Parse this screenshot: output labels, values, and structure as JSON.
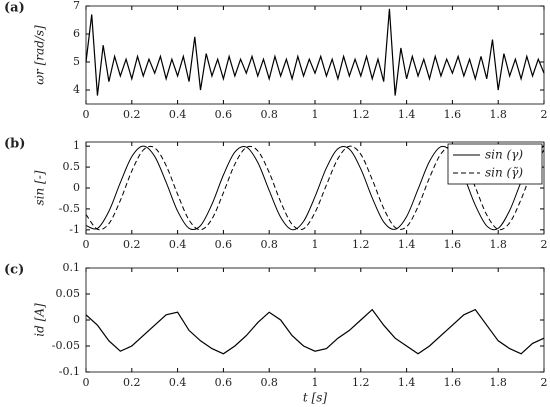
{
  "chart_data": [
    {
      "type": "line",
      "label": "(a)",
      "ylabel": "ωr [rad/s]",
      "xlim": [
        0,
        2
      ],
      "xticks": [
        0,
        0.2,
        0.4,
        0.6,
        0.8,
        1,
        1.2,
        1.4,
        1.6,
        1.8,
        2
      ],
      "ylim": [
        3.5,
        7
      ],
      "yticks": [
        4,
        5,
        6,
        7
      ],
      "x": [
        0,
        0.025,
        0.05,
        0.075,
        0.1,
        0.125,
        0.15,
        0.175,
        0.2,
        0.225,
        0.25,
        0.275,
        0.3,
        0.325,
        0.35,
        0.375,
        0.4,
        0.425,
        0.45,
        0.475,
        0.5,
        0.525,
        0.55,
        0.575,
        0.6,
        0.625,
        0.65,
        0.675,
        0.7,
        0.725,
        0.75,
        0.775,
        0.8,
        0.825,
        0.85,
        0.875,
        0.9,
        0.925,
        0.95,
        0.975,
        1,
        1.025,
        1.05,
        1.075,
        1.1,
        1.125,
        1.15,
        1.175,
        1.2,
        1.225,
        1.25,
        1.275,
        1.3,
        1.325,
        1.35,
        1.375,
        1.4,
        1.425,
        1.45,
        1.475,
        1.5,
        1.525,
        1.55,
        1.575,
        1.6,
        1.625,
        1.65,
        1.675,
        1.7,
        1.725,
        1.75,
        1.775,
        1.8,
        1.825,
        1.85,
        1.875,
        1.9,
        1.925,
        1.95,
        1.975,
        2
      ],
      "series": [
        {
          "color": "#000000",
          "dash": "solid",
          "values": [
            5.0,
            6.7,
            3.8,
            5.6,
            4.3,
            5.2,
            4.5,
            5.1,
            4.4,
            5.2,
            4.5,
            5.1,
            4.6,
            5.2,
            4.4,
            5.1,
            4.5,
            5.2,
            4.3,
            5.9,
            4.0,
            5.3,
            4.5,
            5.1,
            4.4,
            5.2,
            4.5,
            5.1,
            4.6,
            5.2,
            4.5,
            5.1,
            4.4,
            5.2,
            4.5,
            5.1,
            4.4,
            5.2,
            4.5,
            5.1,
            4.6,
            5.2,
            4.5,
            5.1,
            4.4,
            5.2,
            4.5,
            5.1,
            4.5,
            5.2,
            4.4,
            5.1,
            4.3,
            6.9,
            3.8,
            5.5,
            4.4,
            5.2,
            4.5,
            5.1,
            4.4,
            5.2,
            4.5,
            5.1,
            4.6,
            5.2,
            4.5,
            5.1,
            4.4,
            5.2,
            4.4,
            5.8,
            4.0,
            5.3,
            4.5,
            5.1,
            4.4,
            5.2,
            4.5,
            5.1,
            4.6
          ]
        }
      ]
    },
    {
      "type": "line",
      "label": "(b)",
      "ylabel": "sin [-]",
      "legend": "upper right",
      "xlim": [
        0,
        2
      ],
      "xticks": [
        0,
        0.2,
        0.4,
        0.6,
        0.8,
        1,
        1.2,
        1.4,
        1.6,
        1.8,
        2
      ],
      "ylim": [
        -1.1,
        1.1
      ],
      "yticks": [
        -1,
        -0.5,
        0,
        0.5,
        1
      ],
      "x": [
        0,
        0.05,
        0.1,
        0.15,
        0.2,
        0.25,
        0.3,
        0.35,
        0.4,
        0.45,
        0.5,
        0.55,
        0.6,
        0.65,
        0.7,
        0.75,
        0.8,
        0.85,
        0.9,
        0.95,
        1,
        1.05,
        1.1,
        1.15,
        1.2,
        1.25,
        1.3,
        1.35,
        1.4,
        1.45,
        1.5,
        1.55,
        1.6,
        1.65,
        1.7,
        1.75,
        1.8,
        1.85,
        1.9,
        1.95,
        2
      ],
      "series": [
        {
          "name": "sin (γ)",
          "color": "#000000",
          "dash": "solid",
          "values": [
            -0.897,
            -0.966,
            -0.556,
            0.129,
            0.75,
            1.0,
            0.755,
            0.136,
            -0.552,
            -0.963,
            -0.899,
            -0.389,
            0.311,
            0.858,
            0.979,
            0.612,
            -0.059,
            -0.699,
            -0.997,
            -0.798,
            -0.209,
            0.482,
            0.939,
            0.931,
            0.455,
            -0.237,
            -0.812,
            -0.987,
            -0.684,
            -0.029,
            0.636,
            0.988,
            0.838,
            0.284,
            -0.411,
            -0.907,
            -0.965,
            -0.538,
            0.149,
            0.764,
            1.0
          ]
        },
        {
          "name": "sin (γ̃)",
          "color": "#000000",
          "dash": "dashed",
          "values": [
            -0.631,
            -0.986,
            -0.852,
            -0.297,
            0.405,
            0.907,
            0.96,
            0.537,
            -0.15,
            -0.766,
            -1.0,
            -0.741,
            -0.114,
            0.57,
            0.971,
            0.89,
            0.37,
            -0.331,
            -0.87,
            -0.975,
            -0.586,
            0.072,
            0.701,
            0.998,
            0.806,
            0.2,
            -0.487,
            -0.942,
            -0.926,
            -0.445,
            0.245,
            0.817,
            0.985,
            0.676,
            0.021,
            -0.643,
            -0.99,
            -0.832,
            -0.272,
            0.428,
            0.913
          ]
        }
      ]
    },
    {
      "type": "line",
      "label": "(c)",
      "ylabel": "id [A]",
      "xlabel": "t [s]",
      "xlim": [
        0,
        2
      ],
      "xticks": [
        0,
        0.2,
        0.4,
        0.6,
        0.8,
        1,
        1.2,
        1.4,
        1.6,
        1.8,
        2
      ],
      "ylim": [
        -0.1,
        0.1
      ],
      "yticks": [
        -0.1,
        -0.05,
        0,
        0.05,
        0.1
      ],
      "x": [
        0,
        0.05,
        0.1,
        0.15,
        0.2,
        0.25,
        0.3,
        0.35,
        0.4,
        0.45,
        0.5,
        0.55,
        0.6,
        0.65,
        0.7,
        0.75,
        0.8,
        0.85,
        0.9,
        0.95,
        1,
        1.05,
        1.1,
        1.15,
        1.2,
        1.25,
        1.3,
        1.35,
        1.4,
        1.45,
        1.5,
        1.55,
        1.6,
        1.65,
        1.7,
        1.75,
        1.8,
        1.85,
        1.9,
        1.95,
        2
      ],
      "series": [
        {
          "color": "#000000",
          "dash": "solid",
          "values": [
            0.01,
            -0.01,
            -0.04,
            -0.06,
            -0.05,
            -0.03,
            -0.01,
            0.01,
            0.015,
            -0.02,
            -0.04,
            -0.055,
            -0.065,
            -0.05,
            -0.03,
            -0.005,
            0.015,
            0.0,
            -0.03,
            -0.05,
            -0.06,
            -0.055,
            -0.035,
            -0.02,
            0.0,
            0.02,
            -0.01,
            -0.035,
            -0.05,
            -0.065,
            -0.05,
            -0.03,
            -0.01,
            0.01,
            0.02,
            -0.01,
            -0.04,
            -0.055,
            -0.065,
            -0.045,
            -0.035
          ]
        }
      ]
    }
  ]
}
